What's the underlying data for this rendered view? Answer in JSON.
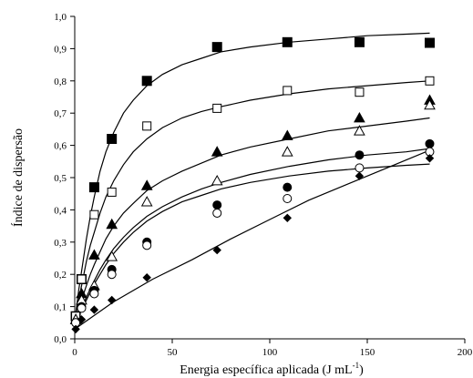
{
  "chart_data": {
    "type": "scatter",
    "xlabel": "Energia específica aplicada (J mL",
    "xlabel_sup": "-1",
    "xlabel_end": ")",
    "ylabel": "Índice de dispersão",
    "xlim": [
      0,
      200
    ],
    "ylim": [
      0,
      1.0
    ],
    "x_ticks": [
      0,
      50,
      100,
      150,
      200
    ],
    "y_ticks": [
      0.0,
      0.1,
      0.2,
      0.3,
      0.4,
      0.5,
      0.6,
      0.7,
      0.8,
      0.9,
      1.0
    ],
    "y_tick_labels": [
      "0,0",
      "0,1",
      "0,2",
      "0,3",
      "0,4",
      "0,5",
      "0,6",
      "0,7",
      "0,8",
      "0,9",
      "1,0"
    ],
    "grid": false,
    "series": [
      {
        "marker": "filled-square",
        "points": [
          [
            0.5,
            0.07
          ],
          [
            3.5,
            0.185
          ],
          [
            10,
            0.47
          ],
          [
            19,
            0.62
          ],
          [
            37,
            0.8
          ],
          [
            73,
            0.905
          ],
          [
            109,
            0.92
          ],
          [
            146,
            0.92
          ],
          [
            182,
            0.918
          ]
        ],
        "fit": [
          [
            0.2,
            0.06
          ],
          [
            1,
            0.1
          ],
          [
            2,
            0.15
          ],
          [
            4,
            0.23
          ],
          [
            6,
            0.31
          ],
          [
            8,
            0.38
          ],
          [
            10,
            0.44
          ],
          [
            13,
            0.52
          ],
          [
            16,
            0.58
          ],
          [
            20,
            0.64
          ],
          [
            25,
            0.7
          ],
          [
            30,
            0.74
          ],
          [
            37,
            0.785
          ],
          [
            45,
            0.82
          ],
          [
            55,
            0.85
          ],
          [
            65,
            0.87
          ],
          [
            75,
            0.89
          ],
          [
            90,
            0.905
          ],
          [
            110,
            0.92
          ],
          [
            130,
            0.93
          ],
          [
            150,
            0.94
          ],
          [
            170,
            0.945
          ],
          [
            182,
            0.948
          ]
        ]
      },
      {
        "marker": "open-square",
        "points": [
          [
            0.5,
            0.07
          ],
          [
            3.5,
            0.185
          ],
          [
            10,
            0.385
          ],
          [
            19,
            0.455
          ],
          [
            37,
            0.66
          ],
          [
            73,
            0.715
          ],
          [
            109,
            0.77
          ],
          [
            146,
            0.765
          ],
          [
            182,
            0.8
          ]
        ],
        "fit": [
          [
            0.2,
            0.06
          ],
          [
            1,
            0.09
          ],
          [
            2,
            0.12
          ],
          [
            4,
            0.18
          ],
          [
            6,
            0.24
          ],
          [
            8,
            0.29
          ],
          [
            10,
            0.33
          ],
          [
            13,
            0.39
          ],
          [
            16,
            0.44
          ],
          [
            20,
            0.49
          ],
          [
            25,
            0.54
          ],
          [
            30,
            0.58
          ],
          [
            37,
            0.62
          ],
          [
            45,
            0.655
          ],
          [
            55,
            0.685
          ],
          [
            65,
            0.705
          ],
          [
            75,
            0.72
          ],
          [
            90,
            0.74
          ],
          [
            110,
            0.76
          ],
          [
            130,
            0.775
          ],
          [
            150,
            0.785
          ],
          [
            170,
            0.795
          ],
          [
            182,
            0.8
          ]
        ]
      },
      {
        "marker": "filled-triangle",
        "points": [
          [
            0.5,
            0.06
          ],
          [
            3.5,
            0.14
          ],
          [
            10,
            0.26
          ],
          [
            19,
            0.355
          ],
          [
            37,
            0.475
          ],
          [
            73,
            0.58
          ],
          [
            109,
            0.63
          ],
          [
            146,
            0.685
          ],
          [
            182,
            0.74
          ]
        ],
        "fit": [
          [
            0.2,
            0.05
          ],
          [
            1,
            0.07
          ],
          [
            2,
            0.09
          ],
          [
            4,
            0.13
          ],
          [
            6,
            0.165
          ],
          [
            8,
            0.2
          ],
          [
            10,
            0.23
          ],
          [
            13,
            0.27
          ],
          [
            16,
            0.31
          ],
          [
            20,
            0.35
          ],
          [
            25,
            0.39
          ],
          [
            30,
            0.42
          ],
          [
            37,
            0.46
          ],
          [
            45,
            0.49
          ],
          [
            55,
            0.52
          ],
          [
            65,
            0.545
          ],
          [
            75,
            0.57
          ],
          [
            90,
            0.595
          ],
          [
            110,
            0.62
          ],
          [
            130,
            0.645
          ],
          [
            150,
            0.66
          ],
          [
            170,
            0.675
          ],
          [
            182,
            0.685
          ]
        ]
      },
      {
        "marker": "open-triangle",
        "points": [
          [
            0.5,
            0.06
          ],
          [
            3.5,
            0.12
          ],
          [
            10,
            0.165
          ],
          [
            19,
            0.255
          ],
          [
            37,
            0.425
          ],
          [
            73,
            0.49
          ],
          [
            109,
            0.58
          ],
          [
            146,
            0.645
          ],
          [
            182,
            0.725
          ]
        ],
        "fit": [
          [
            0.2,
            0.045
          ],
          [
            1,
            0.06
          ],
          [
            2,
            0.075
          ],
          [
            4,
            0.1
          ],
          [
            6,
            0.13
          ],
          [
            8,
            0.155
          ],
          [
            10,
            0.18
          ],
          [
            13,
            0.215
          ],
          [
            16,
            0.245
          ],
          [
            20,
            0.28
          ],
          [
            25,
            0.315
          ],
          [
            30,
            0.345
          ],
          [
            37,
            0.38
          ],
          [
            45,
            0.41
          ],
          [
            55,
            0.44
          ],
          [
            65,
            0.465
          ],
          [
            75,
            0.485
          ],
          [
            90,
            0.51
          ],
          [
            110,
            0.535
          ],
          [
            130,
            0.555
          ],
          [
            150,
            0.57
          ],
          [
            170,
            0.58
          ],
          [
            182,
            0.59
          ]
        ]
      },
      {
        "marker": "filled-circle",
        "points": [
          [
            0.5,
            0.05
          ],
          [
            3.5,
            0.1
          ],
          [
            10,
            0.15
          ],
          [
            19,
            0.215
          ],
          [
            37,
            0.3
          ],
          [
            73,
            0.415
          ],
          [
            109,
            0.47
          ],
          [
            146,
            0.57
          ],
          [
            182,
            0.605
          ]
        ],
        "fit": [
          [
            0.2,
            0.04
          ],
          [
            1,
            0.055
          ],
          [
            2,
            0.07
          ],
          [
            4,
            0.095
          ],
          [
            6,
            0.12
          ],
          [
            8,
            0.145
          ],
          [
            10,
            0.17
          ],
          [
            13,
            0.2
          ],
          [
            16,
            0.23
          ],
          [
            20,
            0.265
          ],
          [
            25,
            0.3
          ],
          [
            30,
            0.33
          ],
          [
            37,
            0.365
          ],
          [
            45,
            0.395
          ],
          [
            55,
            0.425
          ],
          [
            65,
            0.445
          ],
          [
            75,
            0.465
          ],
          [
            90,
            0.485
          ],
          [
            110,
            0.505
          ],
          [
            130,
            0.52
          ],
          [
            150,
            0.53
          ],
          [
            170,
            0.538
          ],
          [
            182,
            0.542
          ]
        ]
      },
      {
        "marker": "open-circle",
        "points": [
          [
            0.5,
            0.05
          ],
          [
            3.5,
            0.095
          ],
          [
            10,
            0.14
          ],
          [
            19,
            0.2
          ],
          [
            37,
            0.29
          ],
          [
            73,
            0.39
          ],
          [
            109,
            0.435
          ],
          [
            146,
            0.53
          ],
          [
            182,
            0.58
          ]
        ],
        "fit": []
      },
      {
        "marker": "filled-diamond",
        "points": [
          [
            0.5,
            0.03
          ],
          [
            3.5,
            0.06
          ],
          [
            10,
            0.09
          ],
          [
            19,
            0.12
          ],
          [
            37,
            0.19
          ],
          [
            73,
            0.275
          ],
          [
            109,
            0.375
          ],
          [
            146,
            0.505
          ],
          [
            182,
            0.56
          ]
        ],
        "fit": [
          [
            0,
            0.03
          ],
          [
            20,
            0.115
          ],
          [
            40,
            0.185
          ],
          [
            60,
            0.245
          ],
          [
            80,
            0.31
          ],
          [
            100,
            0.37
          ],
          [
            120,
            0.43
          ],
          [
            140,
            0.48
          ],
          [
            160,
            0.53
          ],
          [
            182,
            0.585
          ]
        ]
      }
    ]
  }
}
